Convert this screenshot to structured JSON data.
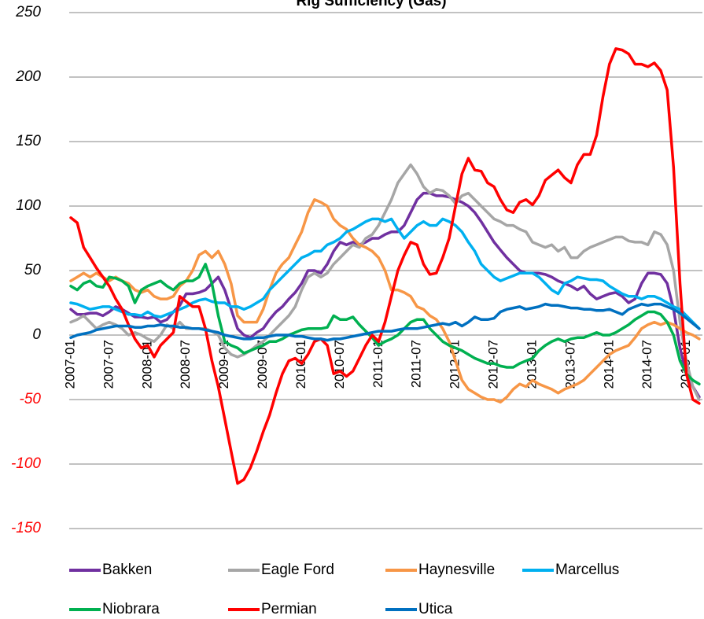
{
  "chart_data": {
    "type": "line",
    "title": "Rig Sufficiency (Gas)",
    "categories": [
      "2007-01",
      null,
      null,
      null,
      null,
      null,
      "2007-07",
      null,
      null,
      null,
      null,
      null,
      "2008-01",
      null,
      null,
      null,
      null,
      null,
      "2008-07",
      null,
      null,
      null,
      null,
      null,
      "2009-01",
      null,
      null,
      null,
      null,
      null,
      "2009-07",
      null,
      null,
      null,
      null,
      null,
      "2010-01",
      null,
      null,
      null,
      null,
      null,
      "2010-07",
      null,
      null,
      null,
      null,
      null,
      "2011-01",
      null,
      null,
      null,
      null,
      null,
      "2011-07",
      null,
      null,
      null,
      null,
      null,
      "2012-01",
      null,
      null,
      null,
      null,
      null,
      "2012-07",
      null,
      null,
      null,
      null,
      null,
      "2013-01",
      null,
      null,
      null,
      null,
      null,
      "2013-07",
      null,
      null,
      null,
      null,
      null,
      "2014-01",
      null,
      null,
      null,
      null,
      null,
      "2014-07",
      null,
      null,
      null,
      null,
      null,
      "2015-01",
      null,
      null
    ],
    "series": [
      {
        "name": "Bakken",
        "color": "#7030a0",
        "values": [
          20,
          16,
          16,
          17,
          17,
          15,
          18,
          22,
          20,
          17,
          14,
          14,
          13,
          14,
          10,
          12,
          18,
          23,
          32,
          32,
          33,
          35,
          40,
          45,
          35,
          20,
          5,
          0,
          -2,
          2,
          5,
          12,
          18,
          22,
          28,
          33,
          40,
          50,
          50,
          48,
          55,
          65,
          72,
          70,
          72,
          70,
          72,
          75,
          75,
          78,
          80,
          80,
          85,
          95,
          105,
          110,
          110,
          108,
          108,
          107,
          105,
          103,
          100,
          95,
          88,
          80,
          72,
          66,
          60,
          55,
          50,
          48,
          48,
          48,
          47,
          45,
          42,
          40,
          38,
          35,
          38,
          32,
          28,
          30,
          32,
          33,
          30,
          25,
          28,
          40,
          48,
          48,
          47,
          40,
          20,
          -10,
          -30,
          -40,
          -48
        ]
      },
      {
        "name": "Eagle Ford",
        "color": "#a6a6a6",
        "values": [
          10,
          12,
          15,
          10,
          5,
          8,
          10,
          8,
          5,
          0,
          2,
          0,
          -3,
          -5,
          0,
          8,
          5,
          10,
          5,
          5,
          5,
          5,
          3,
          0,
          -10,
          -15,
          -17,
          -15,
          -12,
          -8,
          -5,
          0,
          5,
          10,
          15,
          22,
          35,
          45,
          48,
          45,
          48,
          55,
          60,
          65,
          70,
          68,
          75,
          78,
          85,
          95,
          105,
          118,
          125,
          132,
          125,
          115,
          110,
          113,
          112,
          108,
          102,
          108,
          110,
          105,
          100,
          95,
          90,
          88,
          85,
          85,
          82,
          80,
          72,
          70,
          68,
          70,
          65,
          68,
          60,
          60,
          65,
          68,
          70,
          72,
          74,
          76,
          76,
          73,
          72,
          72,
          70,
          80,
          78,
          70,
          50,
          10,
          -20,
          -40,
          -50
        ]
      },
      {
        "name": "Haynesville",
        "color": "#f79646",
        "values": [
          42,
          45,
          48,
          45,
          48,
          45,
          42,
          45,
          42,
          40,
          35,
          33,
          35,
          30,
          28,
          28,
          30,
          38,
          42,
          50,
          62,
          65,
          60,
          65,
          55,
          40,
          15,
          10,
          10,
          10,
          20,
          35,
          48,
          55,
          60,
          70,
          80,
          95,
          105,
          103,
          100,
          90,
          85,
          82,
          75,
          70,
          68,
          65,
          60,
          50,
          35,
          35,
          33,
          30,
          22,
          20,
          15,
          12,
          5,
          -5,
          -20,
          -35,
          -42,
          -45,
          -48,
          -50,
          -50,
          -52,
          -48,
          -42,
          -38,
          -40,
          -35,
          -38,
          -40,
          -42,
          -45,
          -42,
          -40,
          -38,
          -35,
          -30,
          -25,
          -20,
          -15,
          -12,
          -10,
          -8,
          -2,
          5,
          8,
          10,
          8,
          10,
          8,
          5,
          2,
          0,
          -3
        ]
      },
      {
        "name": "Marcellus",
        "color": "#00b0f0",
        "values": [
          25,
          24,
          22,
          20,
          21,
          22,
          22,
          20,
          18,
          16,
          16,
          15,
          18,
          15,
          14,
          16,
          18,
          20,
          22,
          25,
          27,
          28,
          26,
          25,
          25,
          22,
          22,
          20,
          22,
          25,
          28,
          35,
          40,
          45,
          50,
          55,
          60,
          62,
          65,
          65,
          70,
          72,
          75,
          80,
          82,
          85,
          88,
          90,
          90,
          88,
          90,
          82,
          75,
          80,
          85,
          88,
          85,
          85,
          90,
          88,
          85,
          80,
          72,
          65,
          55,
          50,
          45,
          42,
          44,
          46,
          48,
          48,
          48,
          45,
          40,
          35,
          32,
          40,
          42,
          45,
          44,
          43,
          43,
          42,
          38,
          35,
          32,
          30,
          30,
          28,
          30,
          30,
          28,
          25,
          22,
          20,
          15,
          10,
          5
        ]
      },
      {
        "name": "Niobrara",
        "color": "#00b050",
        "values": [
          38,
          35,
          40,
          42,
          38,
          37,
          45,
          44,
          42,
          38,
          25,
          35,
          38,
          40,
          42,
          38,
          35,
          40,
          42,
          42,
          45,
          55,
          40,
          15,
          -5,
          -8,
          -10,
          -14,
          -12,
          -10,
          -8,
          -5,
          -5,
          -3,
          0,
          2,
          4,
          5,
          5,
          5,
          6,
          15,
          12,
          12,
          14,
          8,
          3,
          -2,
          -8,
          -5,
          -3,
          0,
          5,
          10,
          12,
          12,
          5,
          0,
          -5,
          -8,
          -10,
          -12,
          -15,
          -18,
          -20,
          -22,
          -22,
          -24,
          -25,
          -25,
          -22,
          -20,
          -18,
          -12,
          -8,
          -5,
          -3,
          -5,
          -3,
          -2,
          -2,
          0,
          2,
          0,
          0,
          2,
          5,
          8,
          12,
          15,
          18,
          18,
          16,
          10,
          0,
          -20,
          -30,
          -35,
          -38
        ]
      },
      {
        "name": "Permian",
        "color": "#ff0000",
        "values": [
          91,
          87,
          68,
          60,
          52,
          45,
          38,
          28,
          20,
          8,
          -3,
          -10,
          -8,
          -17,
          -8,
          -3,
          2,
          30,
          26,
          22,
          22,
          5,
          -20,
          -40,
          -65,
          -90,
          -115,
          -112,
          -103,
          -90,
          -75,
          -62,
          -45,
          -30,
          -20,
          -18,
          -22,
          -15,
          -5,
          -3,
          -8,
          -30,
          -28,
          -32,
          -28,
          -18,
          -8,
          0,
          -5,
          10,
          30,
          50,
          62,
          72,
          70,
          55,
          47,
          48,
          60,
          75,
          100,
          125,
          137,
          128,
          127,
          118,
          115,
          105,
          97,
          95,
          103,
          105,
          101,
          108,
          120,
          124,
          128,
          122,
          118,
          132,
          140,
          140,
          155,
          185,
          210,
          222,
          221,
          218,
          210,
          210,
          208,
          211,
          205,
          190,
          130,
          40,
          -30,
          -50,
          -53
        ]
      },
      {
        "name": "Utica",
        "color": "#0070c0",
        "values": [
          -2,
          0,
          1,
          2,
          4,
          5,
          6,
          7,
          7,
          7,
          6,
          6,
          7,
          7,
          8,
          7,
          7,
          6,
          6,
          5,
          5,
          4,
          3,
          2,
          0,
          -1,
          -2,
          -3,
          -3,
          -2,
          -2,
          -1,
          0,
          0,
          0,
          -1,
          -1,
          -2,
          -3,
          -3,
          -4,
          -3,
          -3,
          -2,
          -1,
          0,
          1,
          2,
          3,
          3,
          3,
          4,
          5,
          5,
          5,
          6,
          7,
          8,
          9,
          8,
          10,
          7,
          10,
          14,
          12,
          12,
          13,
          18,
          20,
          21,
          22,
          20,
          21,
          22,
          24,
          23,
          23,
          22,
          21,
          21,
          20,
          20,
          19,
          19,
          20,
          18,
          16,
          20,
          22,
          24,
          23,
          24,
          24,
          22,
          20,
          17,
          13,
          9,
          5
        ]
      }
    ],
    "ylim": [
      -150,
      250
    ],
    "yticks": [
      -150,
      -100,
      -50,
      0,
      50,
      100,
      150,
      200,
      250
    ],
    "grid": true,
    "legend": "bottom",
    "negative_tick_color": "#ff0000"
  }
}
